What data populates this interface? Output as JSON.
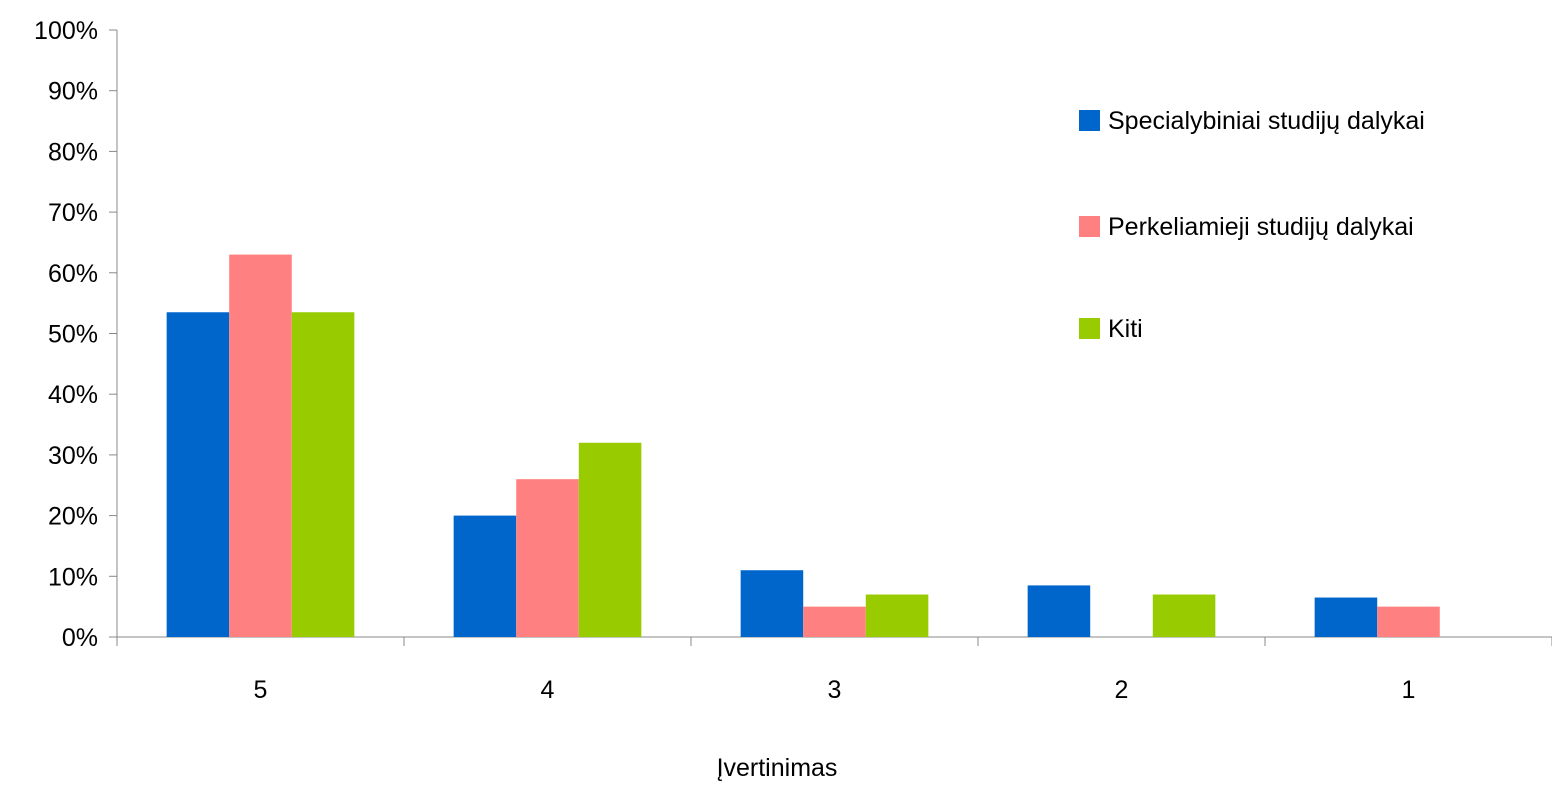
{
  "chart_data": {
    "type": "bar",
    "title": "",
    "xlabel": "Įvertinimas",
    "ylabel": "",
    "categories": [
      "5",
      "4",
      "3",
      "2",
      "1"
    ],
    "ylim": [
      0,
      100
    ],
    "y_ticks": [
      "0%",
      "10%",
      "20%",
      "30%",
      "40%",
      "50%",
      "60%",
      "70%",
      "80%",
      "90%",
      "100%"
    ],
    "y_unit": "%",
    "grid": false,
    "legend_position": "right",
    "series": [
      {
        "name": "Specialybiniai studijų dalykai",
        "color": "#0066CC",
        "values": [
          53.5,
          20,
          11,
          8.5,
          6.5
        ]
      },
      {
        "name": "Perkeliamieji studijų dalykai",
        "color": "#FF8080",
        "values": [
          63,
          26,
          5,
          0,
          5
        ]
      },
      {
        "name": "Kiti",
        "color": "#99CC00",
        "values": [
          53.5,
          32,
          7,
          7,
          0
        ]
      }
    ]
  }
}
